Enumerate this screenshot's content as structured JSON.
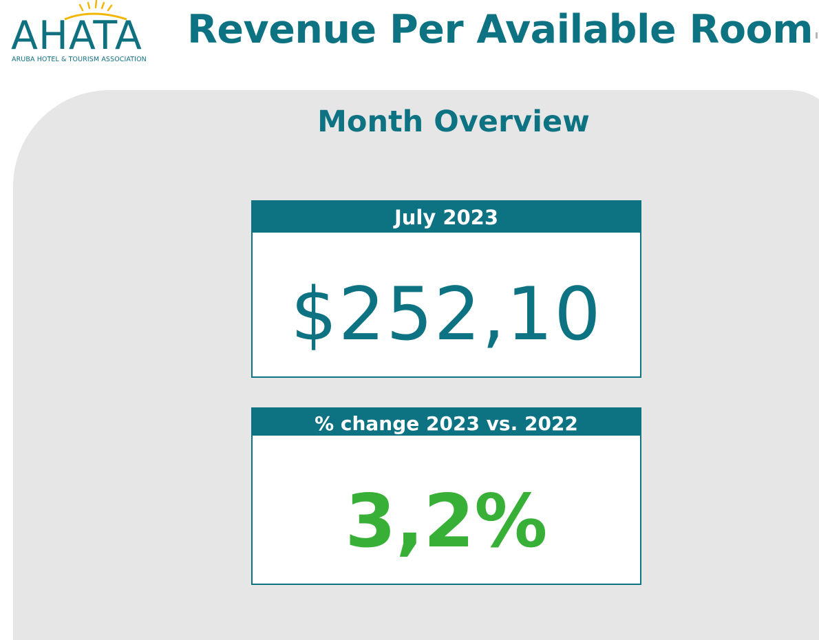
{
  "logo": {
    "wordmark": "AHATA",
    "tagline": "ARUBA HOTEL & TOURISM ASSOCIATION",
    "icon": "sun-icon"
  },
  "header": {
    "title": "Revenue Per Available Room"
  },
  "overview": {
    "title": "Month Overview"
  },
  "revpar_card": {
    "label": "July 2023",
    "value": "$252,10"
  },
  "change_card": {
    "label": "% change 2023 vs. 2022",
    "value": "3,2%"
  },
  "colors": {
    "brand_teal": "#0d7383",
    "positive_green": "#38b037",
    "panel_gray": "#e6e6e6",
    "sun_yellow": "#f2b705"
  }
}
